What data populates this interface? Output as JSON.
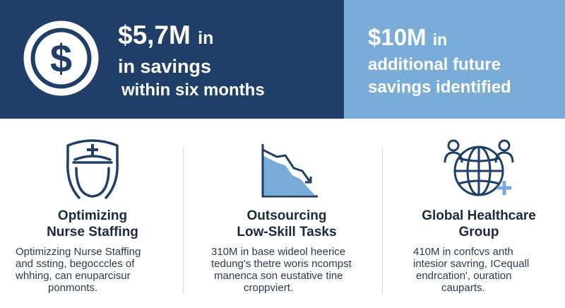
{
  "colors": {
    "navy": "#1f3e68",
    "light_blue": "#79acd9",
    "text_dark": "#1c2a40"
  },
  "banner": {
    "badge_icon": "dollar-circle-icon",
    "main": {
      "amount": "$5,7M",
      "amount_suffix": "in",
      "line2": "in savings",
      "line3": "within six months"
    },
    "side": {
      "amount": "$10M",
      "amount_suffix": "in",
      "line2": "additional future",
      "line3": "savings identified"
    }
  },
  "columns": [
    {
      "icon": "nurse-icon",
      "title_line1": "Optimizing",
      "title_line2": "Nurse Staffing",
      "body": [
        "Optimizzing Nurse Staffing",
        "and ssting, begocccles of",
        "whhing, can enuparcisur",
        "ponmonts."
      ]
    },
    {
      "icon": "declining-chart-icon",
      "title_line1": "Outsourcing",
      "title_line2": "Low-Skill Tasks",
      "body": [
        "310M in base wideol heerice",
        "tedung's thetre woris ncompst",
        "manenca son eustative tine",
        "croppviert."
      ]
    },
    {
      "icon": "globe-people-icon",
      "title_line1": "Global Healthcare",
      "title_line2": "Group",
      "body": [
        "410M in confcvs anth",
        "intesior savring, ICequall",
        "endrcation', ouration",
        "cauparts."
      ]
    }
  ]
}
